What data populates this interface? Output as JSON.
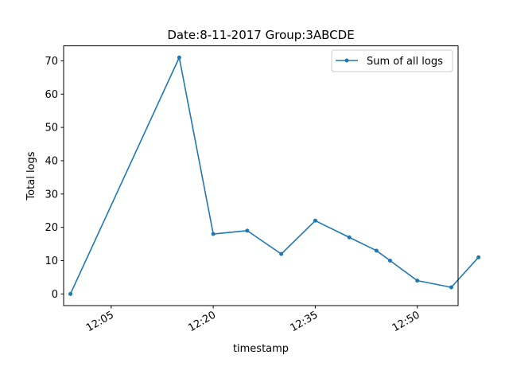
{
  "chart_data": {
    "type": "line",
    "title": "Date:8-11-2017  Group:3ABCDE",
    "xlabel": "timestamp",
    "ylabel": "Total logs",
    "x_axis_type": "time",
    "xlim": [
      "11:58",
      "12:56"
    ],
    "ylim": [
      -3.5,
      74.5
    ],
    "x_ticks": [
      "12:05",
      "12:20",
      "12:35",
      "12:50"
    ],
    "y_ticks": [
      0,
      10,
      20,
      30,
      40,
      50,
      60,
      70
    ],
    "grid": false,
    "legend_position": "top-right",
    "series": [
      {
        "name": "Sum of all logs",
        "color": "#1f77b4",
        "marker": "point",
        "x": [
          "11:59",
          "12:15",
          "12:20",
          "12:25",
          "12:30",
          "12:35",
          "12:40",
          "12:44",
          "12:46",
          "12:50",
          "12:55",
          "12:59"
        ],
        "y": [
          0,
          71,
          18,
          19,
          12,
          22,
          17,
          13,
          10,
          4,
          2,
          11
        ]
      }
    ]
  }
}
